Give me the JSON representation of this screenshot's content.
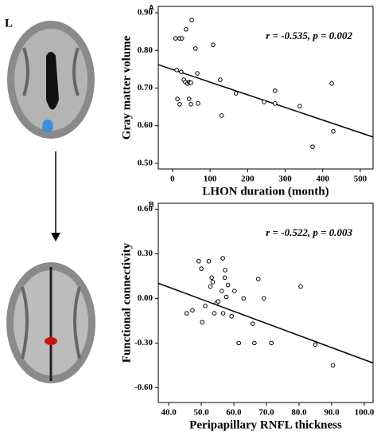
{
  "figure_label": "L",
  "chart_data": [
    {
      "type": "scatter",
      "panel": "A",
      "annotation": "r = -0.535, p = 0.002",
      "x_label": "LHON duration (month)",
      "y_label": "Gray matter volume",
      "x": [
        8,
        19,
        25,
        51,
        36,
        108,
        61,
        11,
        23,
        30,
        34,
        40,
        44,
        47,
        66,
        49,
        13,
        19,
        44,
        49,
        68,
        127,
        131,
        169,
        244,
        273,
        273,
        339,
        424,
        428,
        373
      ],
      "values": [
        0.832,
        0.832,
        0.832,
        0.881,
        0.856,
        0.815,
        0.805,
        0.748,
        0.743,
        0.722,
        0.716,
        0.712,
        0.716,
        0.714,
        0.739,
        0.714,
        0.671,
        0.657,
        0.671,
        0.657,
        0.659,
        0.722,
        0.627,
        0.686,
        0.663,
        0.693,
        0.659,
        0.652,
        0.712,
        0.585,
        0.544
      ],
      "fit": {
        "x": [
          -38,
          534
        ],
        "y": [
          0.762,
          0.57
        ]
      },
      "xlim": [
        -38,
        534
      ],
      "ylim": [
        0.485,
        0.917
      ],
      "xticks": [
        0,
        100,
        200,
        300,
        400,
        500
      ],
      "yticks": [
        {
          "value": 0.5,
          "label": "0.50"
        },
        {
          "value": 0.6,
          "label": "0.60"
        },
        {
          "value": 0.7,
          "label": "0.70"
        },
        {
          "value": 0.8,
          "label": "0.80"
        },
        {
          "value": 0.9,
          "label": "0.90"
        }
      ],
      "color": "#000000"
    },
    {
      "type": "scatter",
      "panel": "B",
      "annotation": "r = -0.522, p = 0.003",
      "x_label": "Peripapillary RNFL thickness",
      "y_label": "Functional connectivity",
      "x": [
        45.5,
        47.3,
        49.2,
        50.0,
        50.3,
        51.2,
        52.3,
        52.8,
        53.5,
        53.2,
        54.0,
        54.7,
        55.2,
        56.6,
        56.3,
        56.7,
        57.3,
        57.2,
        57.7,
        58.2,
        59.3,
        60.2,
        61.5,
        63.0,
        65.8,
        66.3,
        67.5,
        69.2,
        71.5,
        80.5,
        85.0,
        90.4
      ],
      "values": [
        -0.1,
        -0.08,
        0.25,
        0.2,
        -0.16,
        -0.05,
        0.25,
        0.08,
        0.11,
        0.14,
        -0.1,
        -0.03,
        -0.02,
        0.27,
        0.05,
        -0.1,
        0.19,
        0.14,
        0.01,
        0.09,
        -0.12,
        0.05,
        -0.3,
        0.0,
        -0.17,
        -0.3,
        0.13,
        0.0,
        -0.3,
        0.08,
        -0.31,
        -0.45
      ],
      "fit": {
        "x": [
          36.8,
          102.7
        ],
        "y": [
          0.102,
          -0.434
        ]
      },
      "xlim": [
        36.8,
        102.7
      ],
      "ylim": [
        -0.7,
        0.64
      ],
      "xticks": [
        {
          "value": 40,
          "label": "40.0"
        },
        {
          "value": 50,
          "label": "50.0"
        },
        {
          "value": 60,
          "label": "60.0"
        },
        {
          "value": 70,
          "label": "70.0"
        },
        {
          "value": 80,
          "label": "80.0"
        },
        {
          "value": 90,
          "label": "90.0"
        },
        {
          "value": 100,
          "label": "100.0"
        }
      ],
      "yticks": [
        {
          "value": -0.6,
          "label": "-0.60"
        },
        {
          "value": -0.3,
          "label": "-0.30"
        },
        {
          "value": 0,
          "label": "0.00"
        },
        {
          "value": 0.3,
          "label": "0.30"
        },
        {
          "value": 0.6,
          "label": "0.60"
        }
      ],
      "color": "#000000"
    }
  ]
}
